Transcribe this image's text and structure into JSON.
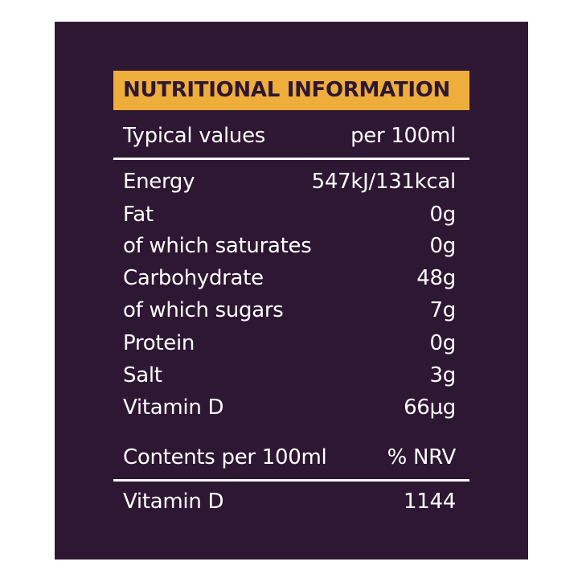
{
  "title": "NUTRITIONAL INFORMATION",
  "colors": {
    "panel": "#2e1733",
    "header": "#efae3b",
    "text": "#ffffff"
  },
  "header_row": {
    "label": "Typical values",
    "value": "per 100ml"
  },
  "nutrients": [
    {
      "label": "Energy",
      "value": "547kJ/131kcal"
    },
    {
      "label": "Fat",
      "value": "0g"
    },
    {
      "label": "of which saturates",
      "value": "0g"
    },
    {
      "label": "Carbohydrate",
      "value": "48g"
    },
    {
      "label": "of which sugars",
      "value": "7g"
    },
    {
      "label": "Protein",
      "value": "0g"
    },
    {
      "label": "Salt",
      "value": "3g"
    },
    {
      "label": "Vitamin D",
      "value": "66µg"
    }
  ],
  "nrv_header": {
    "label": "Contents per 100ml",
    "value": "% NRV"
  },
  "nrv_rows": [
    {
      "label": "Vitamin D",
      "value": "1144"
    }
  ]
}
